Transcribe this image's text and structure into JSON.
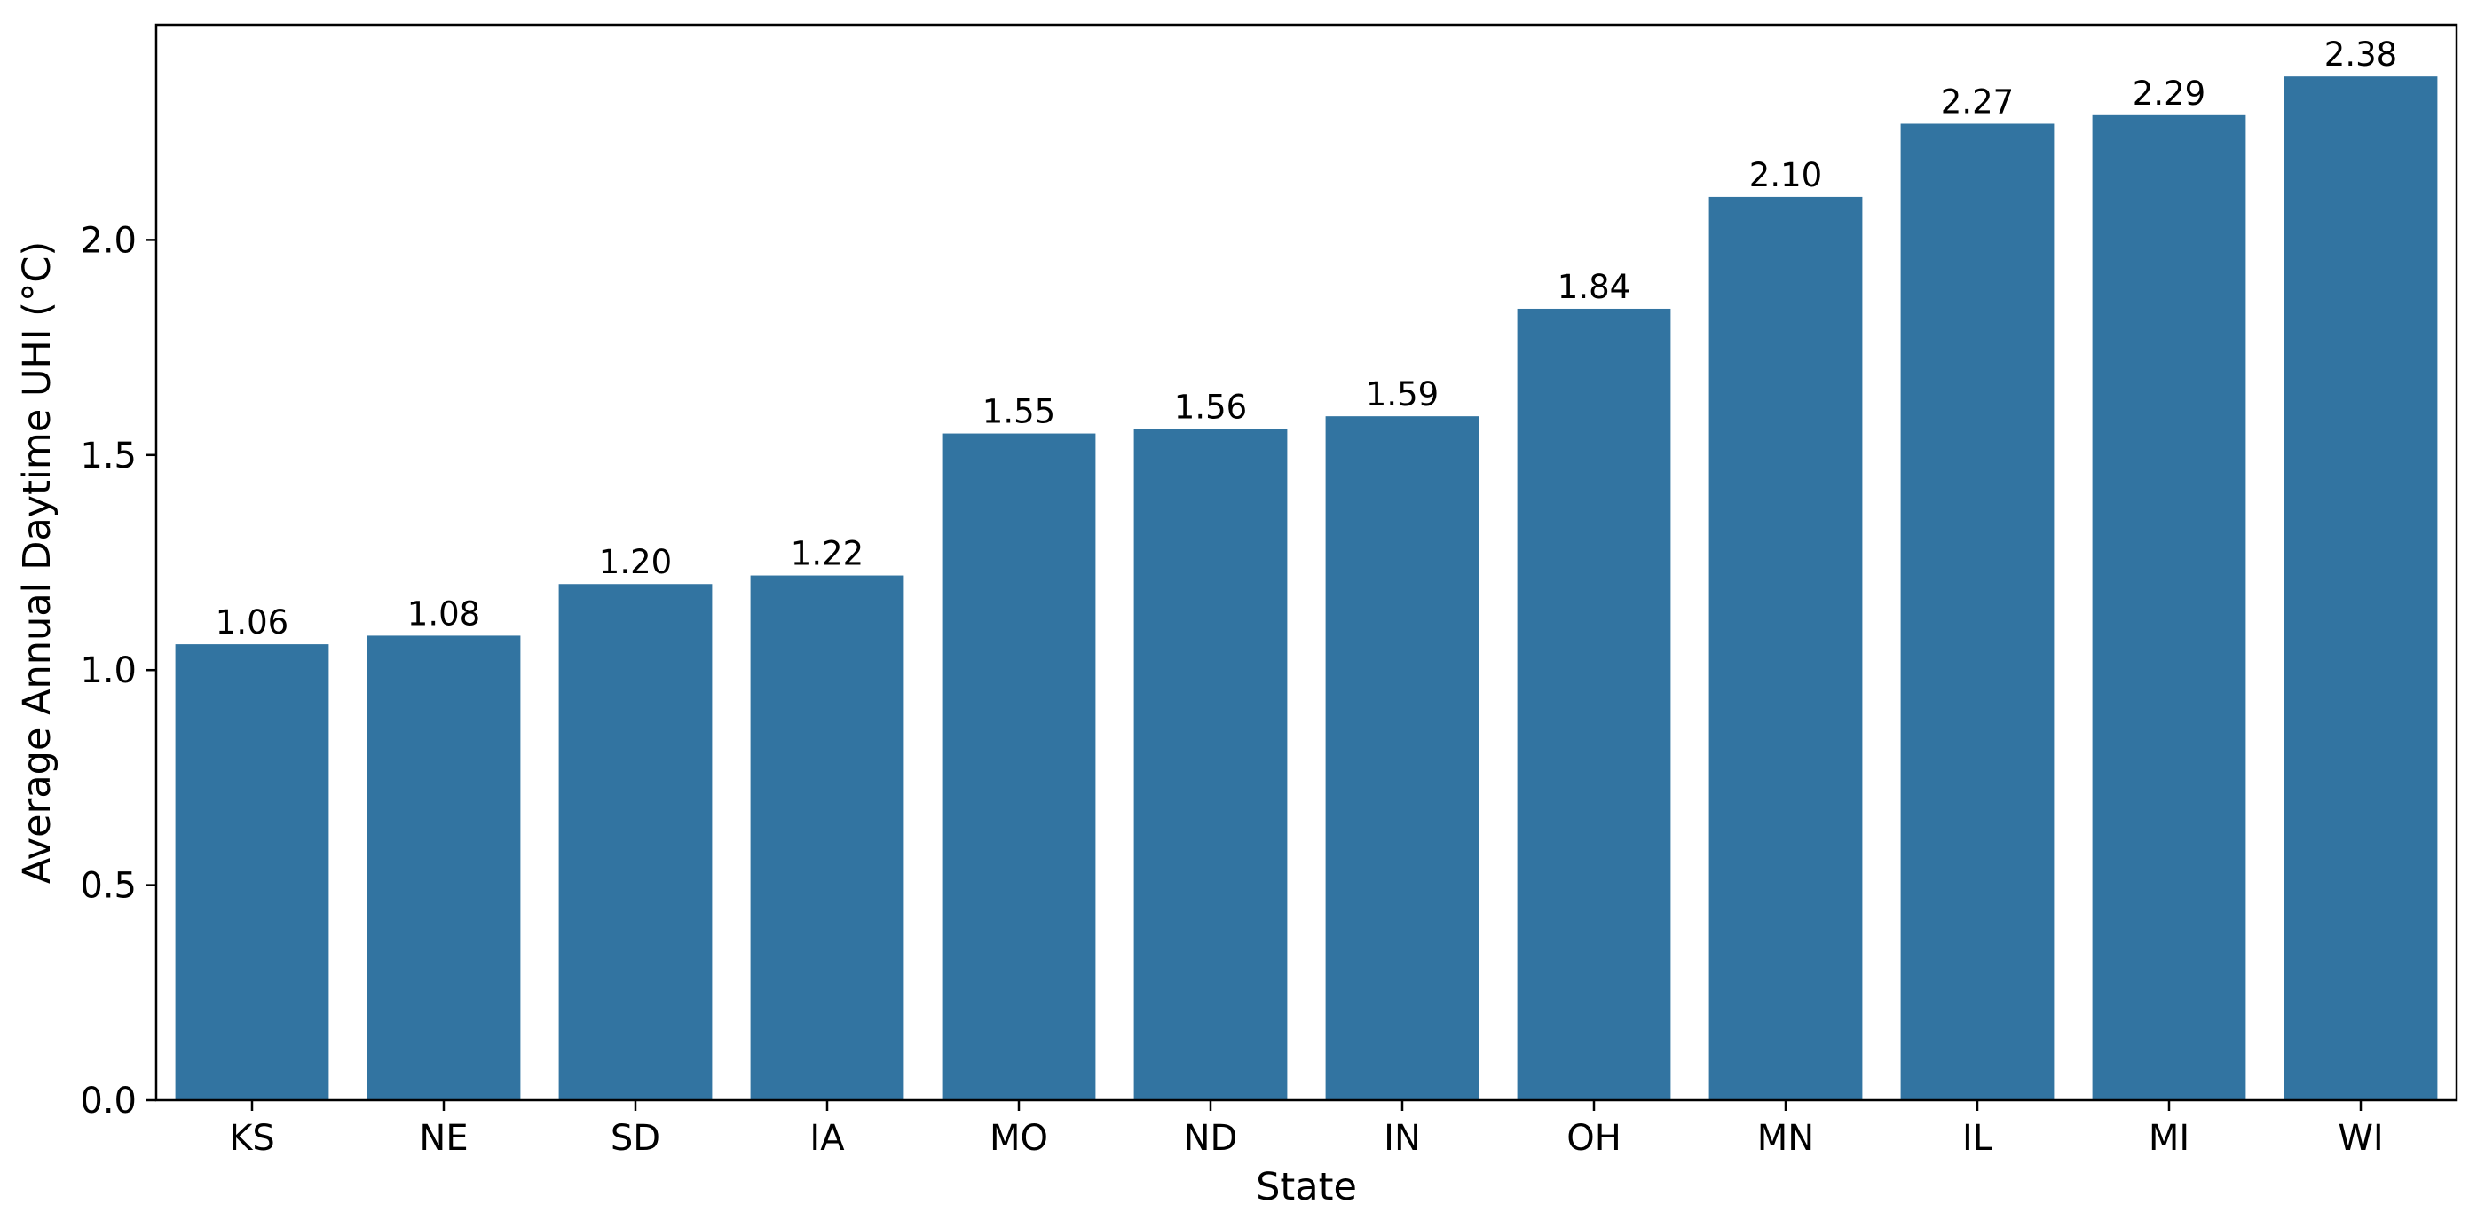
{
  "chart_data": {
    "type": "bar",
    "title": "",
    "xlabel": "State",
    "ylabel": "Average Annual Daytime UHI (°C)",
    "categories": [
      "KS",
      "NE",
      "SD",
      "IA",
      "MO",
      "ND",
      "IN",
      "OH",
      "MN",
      "IL",
      "MI",
      "WI"
    ],
    "values": [
      1.06,
      1.08,
      1.2,
      1.22,
      1.55,
      1.56,
      1.59,
      1.84,
      2.1,
      2.27,
      2.29,
      2.38
    ],
    "value_labels": [
      "1.06",
      "1.08",
      "1.20",
      "1.22",
      "1.55",
      "1.56",
      "1.59",
      "1.84",
      "2.10",
      "2.27",
      "2.29",
      "2.38"
    ],
    "ylim": [
      0,
      2.5
    ],
    "yticks": [
      0.0,
      0.5,
      1.0,
      1.5,
      2.0
    ],
    "ytick_labels": [
      "0.0",
      "0.5",
      "1.0",
      "1.5",
      "2.0"
    ],
    "grid": false,
    "legend": "none",
    "bar_color": "#3274a1"
  }
}
